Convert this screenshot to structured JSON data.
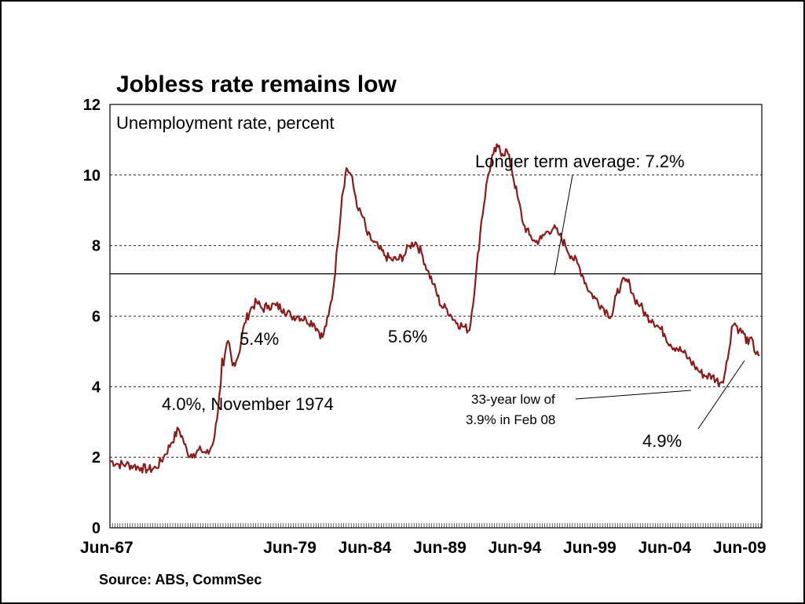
{
  "chart_data": {
    "type": "line",
    "title": "Jobless rate remains low",
    "subtitle": "Unemployment rate, percent",
    "source": "Source: ABS, CommSec",
    "ylim": [
      0,
      12
    ],
    "y_ticks": [
      0,
      2,
      4,
      6,
      8,
      10,
      12
    ],
    "x_tick_labels": [
      "Jun-67",
      "Jun-79",
      "Jun-84",
      "Jun-89",
      "Jun-94",
      "Jun-99",
      "Jun-04",
      "Jun-09"
    ],
    "x_tick_years": [
      1967.42,
      1979.42,
      1984.42,
      1989.42,
      1994.42,
      1999.42,
      2004.42,
      2009.42
    ],
    "grid": "horizontal dashed",
    "reference_line": {
      "label": "Longer term average: 7.2%",
      "value": 7.2
    },
    "line_color": "#8b1a1a",
    "series": [
      {
        "x": [
          1967.42,
          1968.0,
          1968.5,
          1969.0,
          1969.5,
          1970.0,
          1970.5,
          1971.0,
          1971.5,
          1972.0,
          1972.3,
          1972.6,
          1973.0,
          1973.5,
          1974.0,
          1974.4,
          1974.8,
          1974.9,
          1975.0,
          1975.3,
          1975.6,
          1976.0,
          1976.4,
          1976.8,
          1977.2,
          1977.6,
          1978.0,
          1978.5,
          1979.0,
          1979.5,
          1980.0,
          1980.5,
          1981.0,
          1981.3,
          1981.6,
          1982.0,
          1982.3,
          1982.6,
          1982.9,
          1983.2,
          1983.5,
          1983.8,
          1984.0,
          1984.3,
          1984.6,
          1985.0,
          1985.4,
          1985.8,
          1986.2,
          1986.6,
          1987.0,
          1987.4,
          1987.8,
          1988.2,
          1988.6,
          1989.0,
          1989.5,
          1989.9,
          1990.2,
          1990.6,
          1991.0,
          1991.4,
          1991.8,
          1992.2,
          1992.6,
          1993.0,
          1993.3,
          1993.6,
          1993.9,
          1994.2,
          1994.6,
          1995.0,
          1995.4,
          1995.8,
          1996.2,
          1996.6,
          1997.0,
          1997.4,
          1997.8,
          1998.2,
          1998.6,
          1999.0,
          1999.4,
          1999.8,
          2000.2,
          2000.6,
          2000.9,
          2001.2,
          2001.5,
          2001.8,
          2002.1,
          2002.4,
          2002.8,
          2003.2,
          2003.6,
          2004.0,
          2004.4,
          2004.8,
          2005.2,
          2005.6,
          2006.0,
          2006.4,
          2006.8,
          2007.2,
          2007.6,
          2008.1,
          2008.4,
          2008.7,
          2008.9,
          2009.1,
          2009.4,
          2009.7,
          2010.0,
          2010.2,
          2010.4,
          2010.6,
          2010.75
        ],
        "y": [
          1.9,
          1.8,
          1.8,
          1.75,
          1.7,
          1.65,
          1.7,
          2.0,
          2.4,
          2.8,
          2.5,
          2.1,
          2.1,
          2.2,
          2.1,
          2.6,
          4.0,
          4.8,
          4.6,
          5.3,
          4.6,
          4.9,
          5.8,
          6.2,
          6.4,
          6.2,
          6.3,
          6.3,
          6.2,
          6.0,
          6.0,
          5.9,
          5.8,
          5.6,
          5.4,
          6.0,
          6.7,
          8.0,
          9.4,
          10.2,
          10.0,
          9.4,
          9.0,
          8.8,
          8.3,
          8.1,
          7.9,
          7.7,
          7.6,
          7.6,
          7.7,
          8.0,
          8.1,
          7.8,
          7.3,
          6.9,
          6.3,
          6.2,
          6.0,
          5.8,
          5.7,
          5.6,
          7.0,
          8.7,
          9.9,
          10.6,
          10.8,
          10.6,
          10.7,
          10.2,
          9.4,
          8.6,
          8.3,
          8.1,
          8.2,
          8.4,
          8.5,
          8.3,
          8.0,
          7.7,
          7.5,
          7.1,
          6.7,
          6.5,
          6.3,
          6.1,
          6.0,
          6.6,
          6.9,
          7.0,
          6.9,
          6.5,
          6.3,
          6.0,
          5.9,
          5.7,
          5.5,
          5.2,
          5.1,
          5.0,
          4.8,
          4.6,
          4.4,
          4.3,
          4.3,
          4.1,
          4.3,
          5.0,
          5.7,
          5.8,
          5.6,
          5.5,
          5.2,
          5.4,
          5.0,
          5.0,
          4.9
        ]
      }
    ],
    "annotations": [
      {
        "text": "5.4%"
      },
      {
        "text": "5.6%"
      },
      {
        "text": "4.0%, November 1974"
      },
      {
        "text_lines": [
          "33-year low of",
          "3.9% in Feb 08"
        ]
      },
      {
        "text": "4.9%"
      }
    ]
  }
}
